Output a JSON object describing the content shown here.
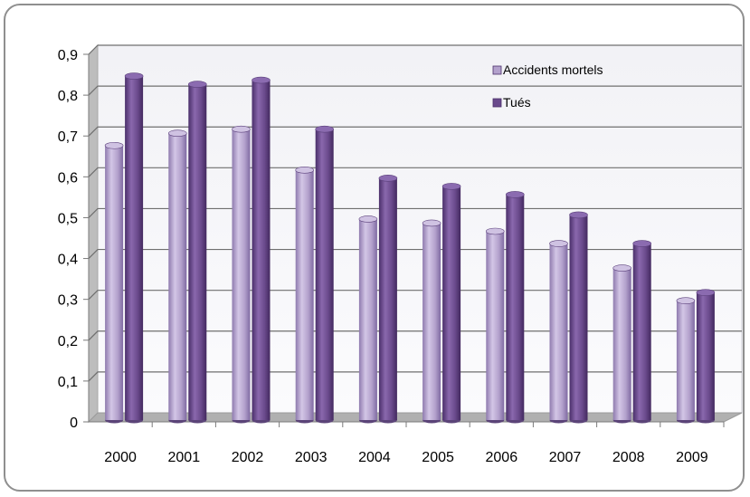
{
  "chart_data": {
    "type": "bar",
    "title": "",
    "xlabel": "",
    "ylabel": "",
    "categories": [
      "2000",
      "2001",
      "2002",
      "2003",
      "2004",
      "2005",
      "2006",
      "2007",
      "2008",
      "2009"
    ],
    "series": [
      {
        "name": "Accidents mortels",
        "color": "#b3a1cc",
        "values": [
          0.67,
          0.7,
          0.71,
          0.61,
          0.49,
          0.48,
          0.46,
          0.43,
          0.37,
          0.29
        ]
      },
      {
        "name": "Tués",
        "color": "#6a4a8c",
        "values": [
          0.84,
          0.82,
          0.83,
          0.71,
          0.59,
          0.57,
          0.55,
          0.5,
          0.43,
          0.31
        ]
      }
    ],
    "ylim": [
      0,
      0.9
    ],
    "yticks": [
      "0",
      "0,1",
      "0,2",
      "0,3",
      "0,4",
      "0,5",
      "0,6",
      "0,7",
      "0,8",
      "0,9"
    ],
    "grid": true,
    "legend_position": "top-right",
    "style": "3d-cylinder"
  }
}
